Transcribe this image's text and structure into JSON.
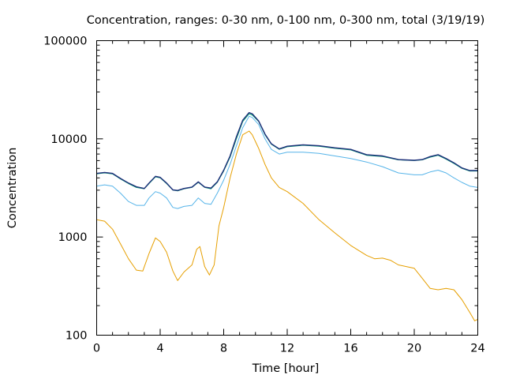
{
  "chart_data": {
    "type": "line",
    "title": "Concentration, ranges: 0-30 nm, 0-100 nm, 0-300 nm, total (3/19/19)",
    "xlabel": "Time [hour]",
    "ylabel": "Concentration",
    "xlim": [
      0,
      24
    ],
    "ylim": [
      100,
      100000
    ],
    "yscale": "log",
    "x_ticks": [
      0,
      4,
      8,
      12,
      16,
      20,
      24
    ],
    "y_ticks": [
      100,
      1000,
      10000,
      100000
    ],
    "grid": false,
    "legend": "none",
    "series": [
      {
        "color": "#e69f00",
        "x": [
          0,
          0.5,
          1,
          1.5,
          2,
          2.5,
          2.9,
          3.3,
          3.7,
          4.0,
          4.4,
          4.8,
          5.1,
          5.5,
          6.0,
          6.3,
          6.5,
          6.8,
          7.1,
          7.4,
          7.7,
          8.0,
          8.4,
          8.8,
          9.2,
          9.6,
          9.8,
          10.2,
          10.6,
          11.0,
          11.5,
          12.0,
          13.0,
          14.0,
          15.0,
          16.0,
          17.0,
          17.5,
          18.0,
          18.5,
          19.0,
          19.5,
          20.0,
          20.5,
          21.0,
          21.5,
          22.0,
          22.5,
          23.0,
          23.5,
          23.8,
          24.0
        ],
        "values": [
          1500,
          1450,
          1200,
          850,
          600,
          460,
          450,
          680,
          980,
          900,
          700,
          450,
          360,
          440,
          520,
          750,
          800,
          500,
          410,
          520,
          1300,
          2000,
          4000,
          7000,
          11000,
          12000,
          11000,
          8000,
          5500,
          4000,
          3200,
          2900,
          2200,
          1500,
          1100,
          820,
          650,
          600,
          610,
          580,
          520,
          500,
          480,
          380,
          300,
          290,
          300,
          290,
          230,
          170,
          140,
          145
        ]
      },
      {
        "color": "#56b4e9",
        "x": [
          0,
          0.5,
          1,
          1.5,
          2,
          2.5,
          3,
          3.3,
          3.7,
          4.0,
          4.4,
          4.8,
          5.1,
          5.5,
          6.0,
          6.4,
          6.8,
          7.2,
          7.6,
          8.0,
          8.4,
          8.8,
          9.2,
          9.6,
          9.8,
          10.2,
          10.6,
          11.0,
          11.5,
          12.0,
          13.0,
          14.0,
          15.0,
          16.0,
          17.0,
          18.0,
          19.0,
          20.0,
          20.5,
          21.0,
          21.5,
          22.0,
          22.5,
          23.0,
          23.5,
          24.0
        ],
        "values": [
          3300,
          3400,
          3300,
          2800,
          2300,
          2100,
          2100,
          2500,
          2900,
          2800,
          2500,
          2000,
          1950,
          2050,
          2100,
          2500,
          2200,
          2150,
          2800,
          3800,
          5500,
          8500,
          13000,
          17000,
          16500,
          14000,
          10000,
          7800,
          7000,
          7300,
          7300,
          7100,
          6700,
          6300,
          5800,
          5200,
          4500,
          4300,
          4300,
          4600,
          4800,
          4500,
          4000,
          3600,
          3300,
          3200
        ]
      },
      {
        "color": "#009e73",
        "x": [
          0,
          0.5,
          1,
          1.5,
          2,
          2.5,
          3,
          3.3,
          3.7,
          4.0,
          4.4,
          4.8,
          5.1,
          5.5,
          6.0,
          6.4,
          6.8,
          7.2,
          7.6,
          8.0,
          8.4,
          8.8,
          9.2,
          9.6,
          9.8,
          10.2,
          10.6,
          11.0,
          11.5,
          12.0,
          13.0,
          14.0,
          15.0,
          16.0,
          17.0,
          18.0,
          19.0,
          20.0,
          20.5,
          21.0,
          21.5,
          22.0,
          22.5,
          23.0,
          23.5,
          24.0
        ],
        "values": [
          4400,
          4500,
          4400,
          3900,
          3500,
          3200,
          3100,
          3500,
          4100,
          4000,
          3500,
          3000,
          2950,
          3100,
          3200,
          3600,
          3200,
          3100,
          3600,
          4700,
          6500,
          10000,
          15000,
          18000,
          17500,
          15000,
          11000,
          8800,
          7800,
          8300,
          8600,
          8400,
          8000,
          7700,
          6800,
          6600,
          6100,
          6000,
          6100,
          6500,
          6800,
          6200,
          5600,
          5000,
          4700,
          4700
        ]
      },
      {
        "color": "#1f2f7a",
        "x": [
          0,
          0.5,
          1,
          1.5,
          2,
          2.5,
          3,
          3.3,
          3.7,
          4.0,
          4.4,
          4.8,
          5.1,
          5.5,
          6.0,
          6.4,
          6.8,
          7.2,
          7.6,
          8.0,
          8.4,
          8.8,
          9.2,
          9.6,
          9.8,
          10.2,
          10.6,
          11.0,
          11.5,
          12.0,
          13.0,
          14.0,
          15.0,
          16.0,
          17.0,
          18.0,
          19.0,
          20.0,
          20.5,
          21.0,
          21.5,
          22.0,
          22.5,
          23.0,
          23.5,
          24.0
        ],
        "values": [
          4450,
          4550,
          4450,
          3950,
          3550,
          3250,
          3120,
          3550,
          4150,
          4050,
          3550,
          3020,
          2980,
          3120,
          3230,
          3650,
          3230,
          3150,
          3650,
          4800,
          6700,
          10500,
          15500,
          18500,
          18000,
          15200,
          11200,
          8900,
          7900,
          8400,
          8700,
          8500,
          8100,
          7800,
          6900,
          6700,
          6150,
          6050,
          6150,
          6600,
          6900,
          6300,
          5700,
          5050,
          4750,
          4750
        ]
      }
    ]
  }
}
